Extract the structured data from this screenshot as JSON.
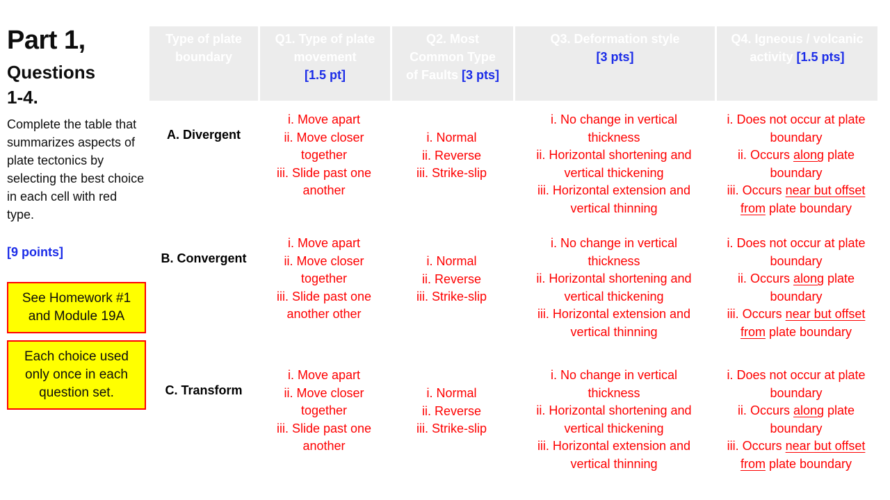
{
  "slide": {
    "title": "Part 1,",
    "subtitle_line1": "Questions",
    "subtitle_line2": "1-4.",
    "description": "Complete the table that summarizes aspects of plate tectonics by selecting the best choice in each cell with red type.",
    "points_label": "[9 points]",
    "note_box_1": "See Homework #1 and Module 19A",
    "note_box_2": "Each choice used only once in each question set."
  },
  "colors": {
    "accent_blue": "#1b2ce8",
    "option_red": "#fe0000",
    "note_yellow": "#ffff00",
    "header_gray": "#ececec"
  },
  "table": {
    "headers": [
      {
        "line1": "Type of plate",
        "line2": "boundary",
        "line3": "",
        "pts": ""
      },
      {
        "line1": "Q1. Type of plate",
        "line2": "movement",
        "line3": "",
        "pts": "[1.5 pt]"
      },
      {
        "line1": "Q2. Most",
        "line2": "Common Type",
        "line3": "of Faults",
        "pts": "[3 pts]"
      },
      {
        "line1": "Q3. Deformation style",
        "line2": "",
        "line3": "",
        "pts": "[3 pts]"
      },
      {
        "line1": "Q4. Igneous / volcanic",
        "line2": "activity",
        "line3": "",
        "pts": "[1.5 pts]"
      }
    ],
    "rows": [
      {
        "label": "A. Divergent",
        "q1_lines": [
          "i. Move apart",
          "ii. Move closer",
          "together",
          "iii. Slide past one",
          "another"
        ]
      },
      {
        "label": "B. Convergent",
        "q1_lines": [
          "i. Move apart",
          "ii. Move closer",
          "together",
          "iii. Slide past one",
          "another other"
        ]
      },
      {
        "label": "C. Transform",
        "q1_lines": [
          "i. Move apart",
          "ii. Move closer",
          "together",
          "iii. Slide past one",
          "another"
        ]
      }
    ],
    "q2_lines": [
      "i. Normal",
      "ii. Reverse",
      "iii. Strike-slip"
    ],
    "q3_lines": [
      "i. No change in vertical",
      "thickness",
      "ii. Horizontal shortening and",
      "vertical thickening",
      "iii. Horizontal extension and",
      "vertical thinning"
    ],
    "q4_lines": [
      [
        {
          "t": "i. Does not occur at plate"
        }
      ],
      [
        {
          "t": "boundary"
        }
      ],
      [
        {
          "t": "ii. Occurs "
        },
        {
          "t": "along",
          "u": true
        },
        {
          "t": " plate"
        }
      ],
      [
        {
          "t": "boundary"
        }
      ],
      [
        {
          "t": "iii. Occurs "
        },
        {
          "t": "near but offset",
          "u": true
        }
      ],
      [
        {
          "t": "from",
          "u": true
        },
        {
          "t": " plate boundary"
        }
      ]
    ]
  }
}
